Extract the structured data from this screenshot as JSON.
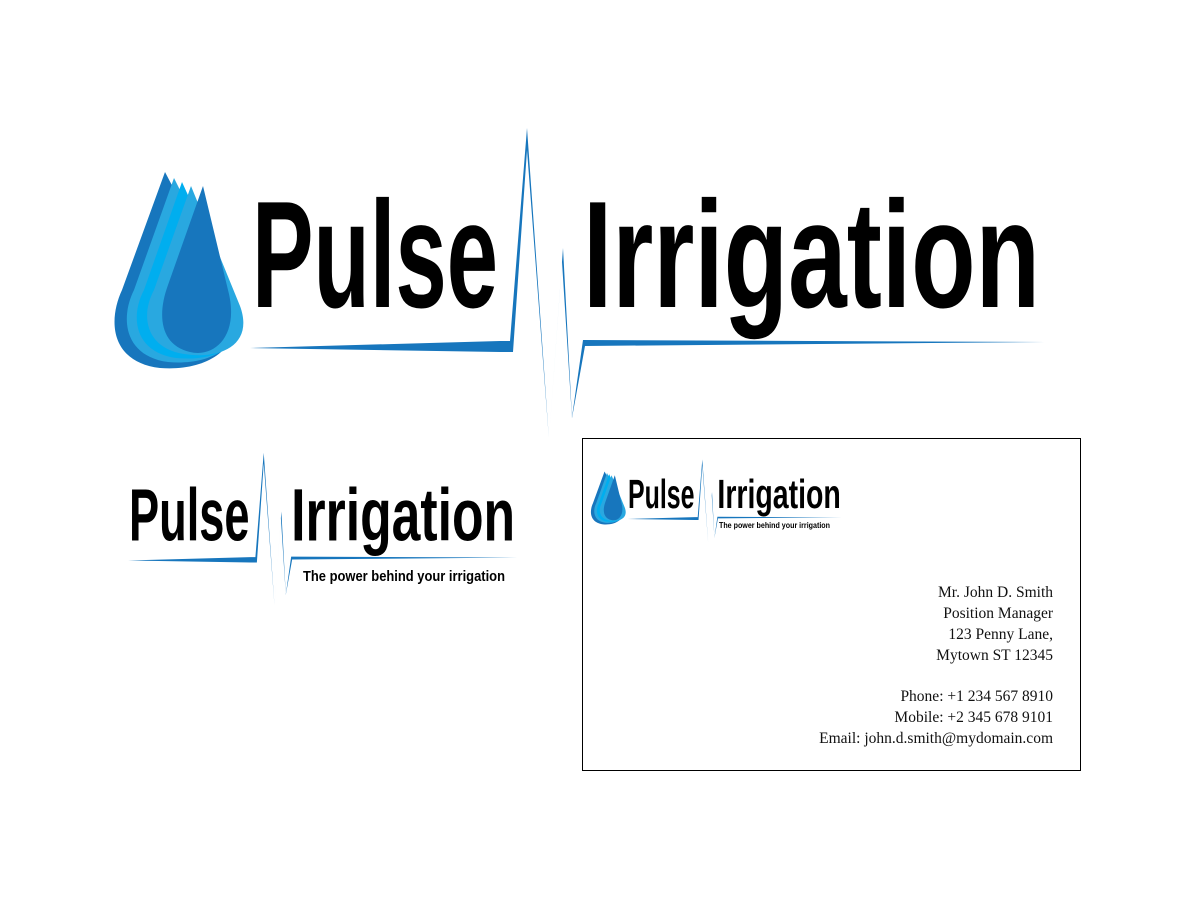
{
  "brand": {
    "name_part1": "Pulse",
    "name_part2": "Irrigation",
    "tagline": "The power behind your irrigation",
    "colors": {
      "primary_blue": "#1776bd",
      "light_blue": "#29a8e0",
      "cyan": "#00aeef",
      "text": "#000000"
    },
    "icons": [
      "water-drop-icon",
      "pulse-line-icon"
    ]
  },
  "business_card": {
    "name": "Mr. John D. Smith",
    "position": "Position Manager",
    "address_line1": "123 Penny Lane,",
    "address_line2": "Mytown ST 12345",
    "phone": "Phone: +1 234 567 8910",
    "mobile": "Mobile: +2 345 678 9101",
    "email": "Email: john.d.smith@mydomain.com"
  }
}
